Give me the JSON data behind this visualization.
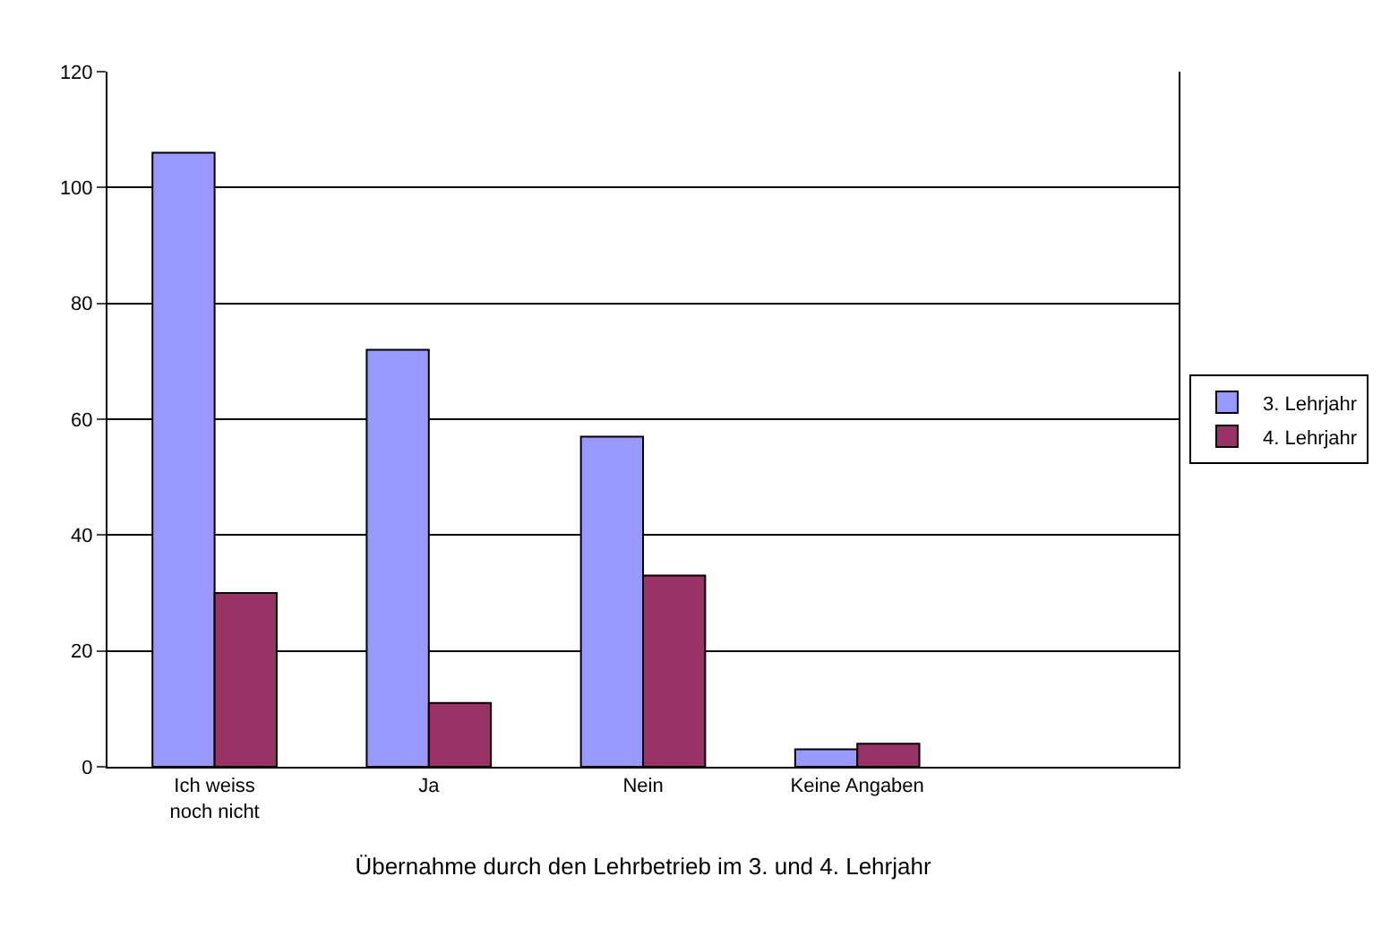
{
  "chart_data": {
    "type": "bar",
    "xlabel": "Übernahme durch den Lehrbetrieb im 3. und 4. Lehrjahr",
    "categories": [
      "Ich weiss noch nicht",
      "Ja",
      "Nein",
      "Keine Angaben",
      null
    ],
    "series": [
      {
        "name": "3. Lehrjahr",
        "color": "#9999ff",
        "values": [
          106,
          72,
          57,
          3,
          null
        ]
      },
      {
        "name": "4. Lehrjahr",
        "color": "#993366",
        "values": [
          30,
          11,
          33,
          4,
          null
        ]
      }
    ],
    "ylim": [
      0,
      120
    ],
    "yticks": [
      0,
      20,
      40,
      60,
      80,
      100,
      120
    ],
    "grid": "y",
    "legend": "right"
  }
}
